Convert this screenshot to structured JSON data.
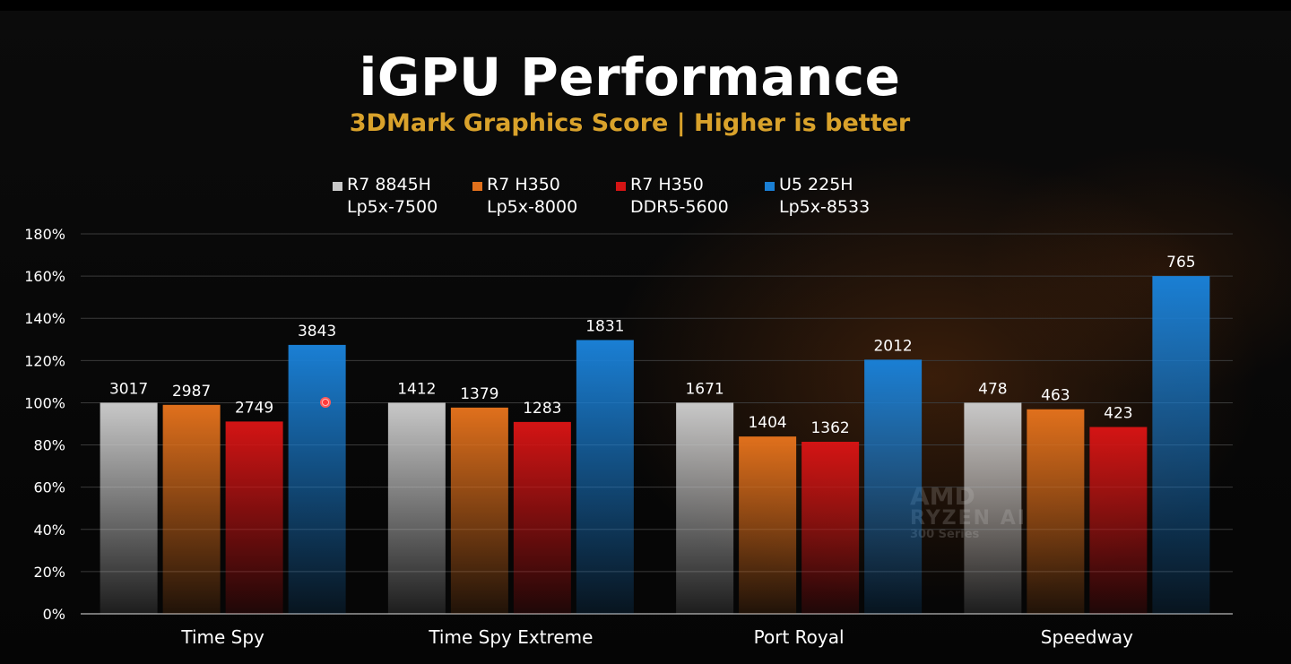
{
  "title": "iGPU Performance",
  "subtitle": "3DMark Graphics Score | Higher is better",
  "legend": [
    {
      "line1": "R7 8845H",
      "line2": "Lp5x-7500",
      "color": "#c8c8c8"
    },
    {
      "line1": "R7 H350",
      "line2": "Lp5x-8000",
      "color": "#e0701c"
    },
    {
      "line1": "R7 H350",
      "line2": "DDR5-5600",
      "color": "#d41414"
    },
    {
      "line1": "U5 225H",
      "line2": "Lp5x-8533",
      "color": "#1a7fd4"
    }
  ],
  "watermark": {
    "line1": "AMD",
    "line2": "RYZEN AI",
    "line3": "300 Series"
  },
  "chart_data": {
    "type": "bar",
    "title": "iGPU Performance",
    "subtitle": "3DMark Graphics Score | Higher is better",
    "categories": [
      "Time Spy",
      "Time Spy Extreme",
      "Port Royal",
      "Speedway"
    ],
    "ylim": [
      0,
      180
    ],
    "yticks": [
      0,
      20,
      40,
      60,
      80,
      100,
      120,
      140,
      160,
      180
    ],
    "ytick_labels": [
      "0%",
      "20%",
      "40%",
      "60%",
      "80%",
      "100%",
      "120%",
      "140%",
      "160%",
      "180%"
    ],
    "grid": true,
    "legend_position": "top",
    "series": [
      {
        "name": "R7 8845H Lp5x-7500",
        "color": "#c8c8c8",
        "values": [
          100,
          100,
          100,
          100
        ],
        "labels": [
          "3017",
          "1412",
          "1671",
          "478"
        ]
      },
      {
        "name": "R7 H350 Lp5x-8000",
        "color": "#e0701c",
        "values": [
          99,
          97.7,
          84,
          96.9
        ],
        "labels": [
          "2987",
          "1379",
          "1404",
          "463"
        ]
      },
      {
        "name": "R7 H350 DDR5-5600",
        "color": "#d41414",
        "values": [
          91.1,
          90.9,
          81.5,
          88.5
        ],
        "labels": [
          "2749",
          "1283",
          "1362",
          "423"
        ]
      },
      {
        "name": "U5 225H Lp5x-8533",
        "color": "#1a7fd4",
        "values": [
          127.4,
          129.7,
          120.4,
          160
        ],
        "labels": [
          "3843",
          "1831",
          "2012",
          "765"
        ]
      }
    ]
  }
}
